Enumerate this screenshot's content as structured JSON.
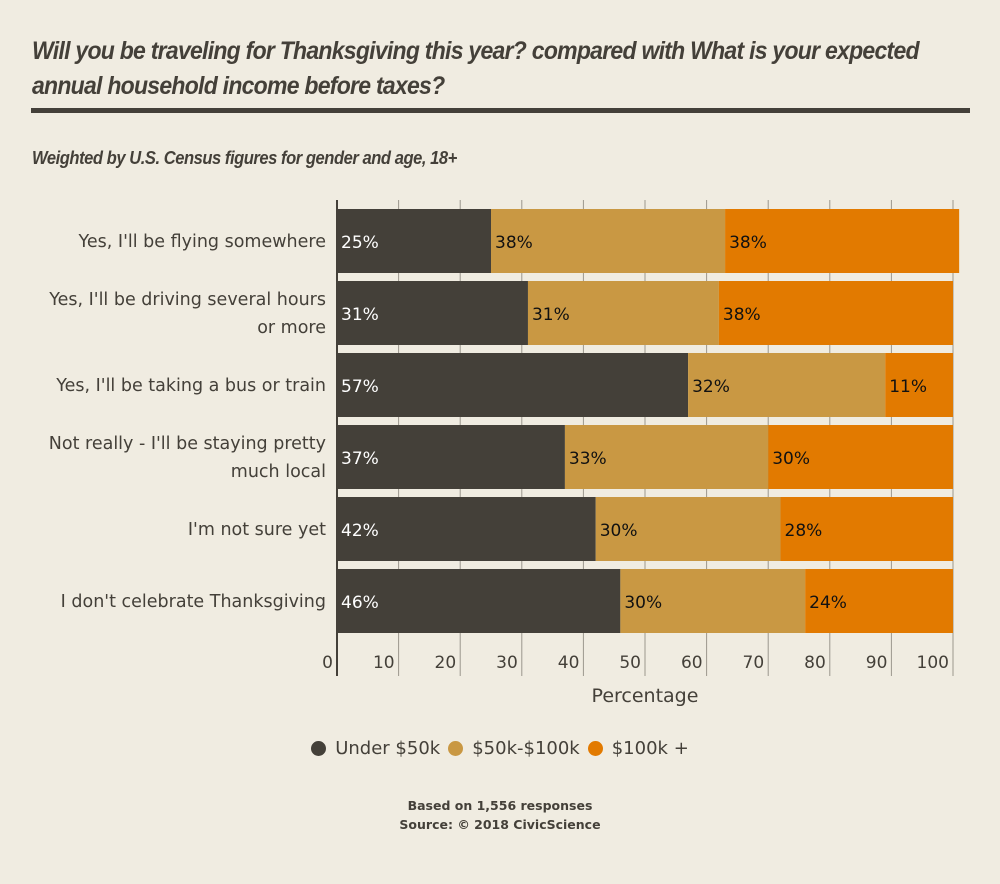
{
  "header": {
    "title": "Will you be traveling for Thanksgiving this year? compared with What is your expected annual household income before taxes?",
    "subtitle": "Weighted by U.S. Census figures for gender and age, 18+"
  },
  "footer": {
    "responses": "Based on 1,556 responses",
    "source": "Source: © 2018 CivicScience"
  },
  "chart_data": {
    "type": "bar",
    "orientation": "horizontal",
    "stacked": true,
    "title": "Will you be traveling for Thanksgiving this year? compared with What is your expected annual household income before taxes?",
    "subtitle": "Weighted by U.S. Census figures for gender and age, 18+",
    "xlabel": "Percentage",
    "ylabel": "",
    "xlim": [
      0,
      100
    ],
    "xticks": [
      0,
      10,
      20,
      30,
      40,
      50,
      60,
      70,
      80,
      90,
      100
    ],
    "grid": true,
    "legend_position": "bottom",
    "categories": [
      [
        "Yes, I'll be flying somewhere"
      ],
      [
        "Yes, I'll be driving several hours",
        "or more"
      ],
      [
        "Yes, I'll be taking a bus or train"
      ],
      [
        "Not really - I'll be staying pretty",
        "much local"
      ],
      [
        "I'm not sure yet"
      ],
      [
        "I don't celebrate Thanksgiving"
      ]
    ],
    "series": [
      {
        "name": "Under $50k",
        "color": "#444039",
        "label_color": "#ffffff",
        "values": [
          25,
          31,
          57,
          37,
          42,
          46
        ]
      },
      {
        "name": "$50k-$100k",
        "color": "#c99843",
        "label_color": "#111111",
        "values": [
          38,
          31,
          32,
          33,
          30,
          30
        ]
      },
      {
        "name": "$100k +",
        "color": "#e27a00",
        "label_color": "#111111",
        "values": [
          38,
          38,
          11,
          30,
          28,
          24
        ]
      }
    ],
    "value_suffix": "%"
  }
}
